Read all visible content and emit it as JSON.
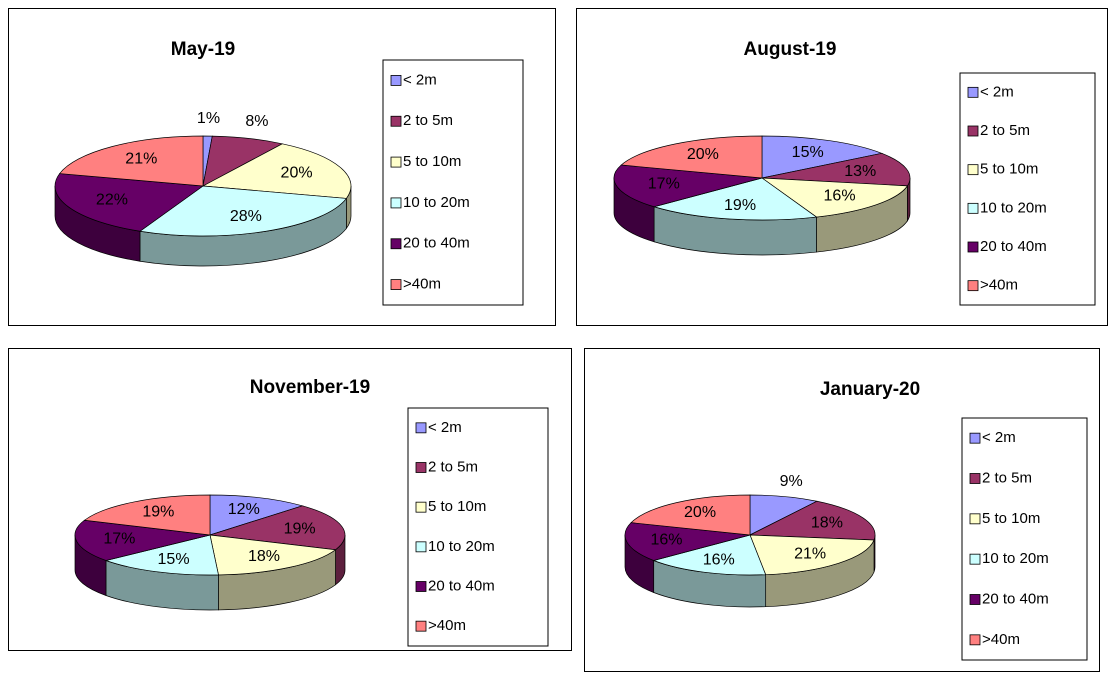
{
  "chart_data": [
    {
      "type": "pie",
      "title": "May-19",
      "categories": [
        "< 2m",
        "2 to 5m",
        "5 to 10m",
        "10 to 20m",
        "20 to 40m",
        ">40m"
      ],
      "values": [
        1,
        8,
        20,
        28,
        22,
        21
      ],
      "value_labels": [
        "1%",
        "8%",
        "20%",
        "28%",
        "22%",
        "21%"
      ],
      "colors": [
        "#9999ff",
        "#993366",
        "#ffffcc",
        "#ccffff",
        "#660066",
        "#ff8080"
      ],
      "legend": "right"
    },
    {
      "type": "pie",
      "title": "August-19",
      "categories": [
        "< 2m",
        "2 to 5m",
        "5 to 10m",
        "10 to 20m",
        "20 to 40m",
        ">40m"
      ],
      "values": [
        15,
        13,
        16,
        19,
        17,
        20
      ],
      "value_labels": [
        "15%",
        "13%",
        "16%",
        "19%",
        "17%",
        "20%"
      ],
      "colors": [
        "#9999ff",
        "#993366",
        "#ffffcc",
        "#ccffff",
        "#660066",
        "#ff8080"
      ],
      "legend": "right"
    },
    {
      "type": "pie",
      "title": "November-19",
      "categories": [
        "< 2m",
        "2 to 5m",
        "5 to 10m",
        "10 to 20m",
        "20 to 40m",
        ">40m"
      ],
      "values": [
        12,
        19,
        18,
        15,
        17,
        19
      ],
      "value_labels": [
        "12%",
        "19%",
        "18%",
        "15%",
        "17%",
        "19%"
      ],
      "colors": [
        "#9999ff",
        "#993366",
        "#ffffcc",
        "#ccffff",
        "#660066",
        "#ff8080"
      ],
      "legend": "right"
    },
    {
      "type": "pie",
      "title": "January-20",
      "categories": [
        "< 2m",
        "2 to 5m",
        "5 to 10m",
        "10 to 20m",
        "20 to 40m",
        ">40m"
      ],
      "values": [
        9,
        18,
        21,
        16,
        16,
        20
      ],
      "value_labels": [
        "9%",
        "18%",
        "21%",
        "16%",
        "16%",
        "20%"
      ],
      "colors": [
        "#9999ff",
        "#993366",
        "#ffffcc",
        "#ccffff",
        "#660066",
        "#ff8080"
      ],
      "legend": "right"
    }
  ]
}
